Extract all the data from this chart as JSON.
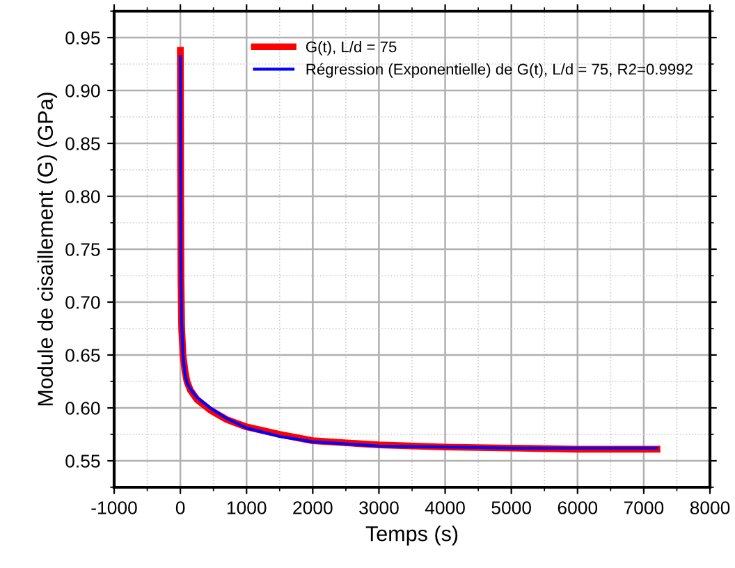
{
  "chart_data": {
    "type": "line",
    "xlabel": "Temps (s)",
    "ylabel": "Module de cisaillement (G) (GPa)",
    "xlim": [
      -1000,
      8000
    ],
    "xticks": [
      -1000,
      0,
      1000,
      2000,
      3000,
      4000,
      5000,
      6000,
      7000,
      8000
    ],
    "ylim": [
      0.525,
      0.975
    ],
    "yticks": [
      0.55,
      {
        "value": 0.6,
        "label": "0.60"
      },
      0.65,
      {
        "value": 0.7,
        "label": "0.70"
      },
      0.75,
      {
        "value": 0.8,
        "label": "0.80"
      },
      0.85,
      {
        "value": 0.9,
        "label": "0.90"
      },
      0.95
    ],
    "grid": true,
    "legend": "top right",
    "line_style": "solid",
    "marker": "none",
    "series": [
      {
        "name": "G(t), L/d = 75",
        "color": "#ff0000",
        "x": [
          0,
          5,
          10,
          20,
          40,
          70,
          100,
          150,
          250,
          450,
          700,
          1000,
          1500,
          2000,
          3000,
          4000,
          5000,
          6000,
          7200
        ],
        "values": [
          0.938,
          0.8,
          0.72,
          0.675,
          0.65,
          0.635,
          0.625,
          0.617,
          0.608,
          0.598,
          0.589,
          0.582,
          0.575,
          0.569,
          0.565,
          0.563,
          0.562,
          0.561,
          0.561
        ]
      },
      {
        "name": "Régression (Exponentielle) de G(t), L/d = 75, R2=0.9992",
        "color": "#0000ff",
        "x": [
          0,
          5,
          10,
          20,
          40,
          70,
          100,
          150,
          250,
          450,
          700,
          1000,
          1500,
          2000,
          3000,
          4000,
          5000,
          6000,
          7200
        ],
        "values": [
          0.932,
          0.8,
          0.72,
          0.68,
          0.65,
          0.632,
          0.624,
          0.618,
          0.61,
          0.6,
          0.59,
          0.581,
          0.573,
          0.568,
          0.564,
          0.563,
          0.562,
          0.562,
          0.562
        ]
      }
    ]
  }
}
